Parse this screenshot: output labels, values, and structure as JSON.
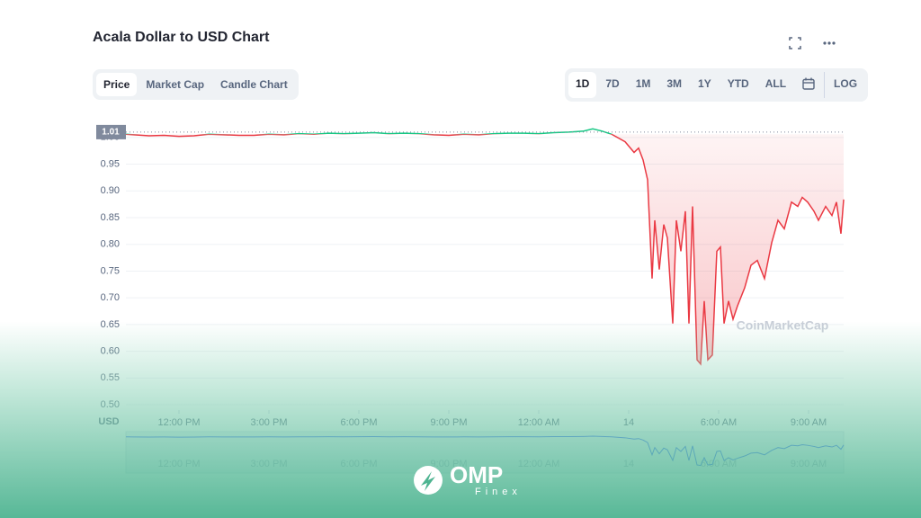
{
  "header": {
    "title": "Acala Dollar to USD Chart"
  },
  "tabs": [
    "Price",
    "Market Cap",
    "Candle Chart"
  ],
  "ranges": [
    "1D",
    "7D",
    "1M",
    "3M",
    "1Y",
    "YTD",
    "ALL",
    "LOG"
  ],
  "watermark": "CoinMarketCap",
  "logo": {
    "name": "OMP",
    "sub": "Finex"
  },
  "chart_data": {
    "type": "line",
    "y_unit": "USD",
    "x": [
      -1.77,
      -1.5,
      -1,
      -0.5,
      0,
      0.5,
      1,
      1.5,
      2,
      2.5,
      3,
      3.5,
      4,
      4.5,
      5,
      5.5,
      6,
      6.5,
      7,
      7.5,
      8,
      8.5,
      9,
      9.5,
      10,
      10.5,
      11,
      11.5,
      12,
      12.5,
      13,
      13.5,
      13.8,
      14.1,
      14.43,
      14.88,
      15.18,
      15.33,
      15.48,
      15.63,
      15.78,
      15.87,
      16.02,
      16.17,
      16.29,
      16.47,
      16.59,
      16.74,
      16.89,
      17.01,
      17.13,
      17.28,
      17.4,
      17.52,
      17.64,
      17.79,
      17.94,
      18.06,
      18.18,
      18.33,
      18.48,
      18.63,
      18.87,
      19.08,
      19.29,
      19.53,
      19.77,
      19.98,
      20.19,
      20.43,
      20.64,
      20.79,
      20.97,
      21.18,
      21.33,
      21.57,
      21.78,
      21.93,
      22.08,
      22.17
    ],
    "series": [
      {
        "up_color": "#16c784",
        "down_color": "#ea3943",
        "values": [
          1.006,
          1.005,
          1.003,
          1.004,
          1.002,
          1.003,
          1.006,
          1.005,
          1.004,
          1.004,
          1.006,
          1.005,
          1.007,
          1.006,
          1.008,
          1.007,
          1.008,
          1.009,
          1.007,
          1.008,
          1.007,
          1.005,
          1.004,
          1.006,
          1.005,
          1.007,
          1.008,
          1.008,
          1.007,
          1.009,
          1.01,
          1.012,
          1.016,
          1.012,
          1.006,
          0.992,
          0.972,
          0.98,
          0.958,
          0.921,
          0.736,
          0.845,
          0.753,
          0.837,
          0.812,
          0.652,
          0.845,
          0.787,
          0.862,
          0.652,
          0.871,
          0.584,
          0.576,
          0.694,
          0.584,
          0.593,
          0.787,
          0.795,
          0.652,
          0.694,
          0.66,
          0.685,
          0.719,
          0.761,
          0.77,
          0.736,
          0.803,
          0.845,
          0.829,
          0.879,
          0.871,
          0.888,
          0.879,
          0.862,
          0.845,
          0.871,
          0.854,
          0.879,
          0.82,
          0.884
        ]
      }
    ],
    "reference": {
      "value": 1.01,
      "label": "1.01"
    },
    "xlim": [
      -1.77,
      22.17
    ],
    "xticks": [
      {
        "value": 0,
        "label": "12:00 PM"
      },
      {
        "value": 3,
        "label": "3:00 PM"
      },
      {
        "value": 6,
        "label": "6:00 PM"
      },
      {
        "value": 9,
        "label": "9:00 PM"
      },
      {
        "value": 12,
        "label": "12:00 AM"
      },
      {
        "value": 15,
        "label": "14"
      },
      {
        "value": 18,
        "label": "6:00 AM"
      },
      {
        "value": 21,
        "label": "9:00 AM"
      }
    ],
    "ylim": [
      0.49,
      1.03
    ],
    "yticks": [
      {
        "value": 0.5,
        "label": "0.50"
      },
      {
        "value": 0.55,
        "label": "0.55"
      },
      {
        "value": 0.6,
        "label": "0.60"
      },
      {
        "value": 0.65,
        "label": "0.65"
      },
      {
        "value": 0.7,
        "label": "0.70"
      },
      {
        "value": 0.75,
        "label": "0.75"
      },
      {
        "value": 0.8,
        "label": "0.80"
      },
      {
        "value": 0.85,
        "label": "0.85"
      },
      {
        "value": 0.9,
        "label": "0.90"
      },
      {
        "value": 0.95,
        "label": "0.95"
      },
      {
        "value": 1,
        "label": "1.00"
      }
    ],
    "grid": true,
    "navigator_color": "#3861fb"
  }
}
